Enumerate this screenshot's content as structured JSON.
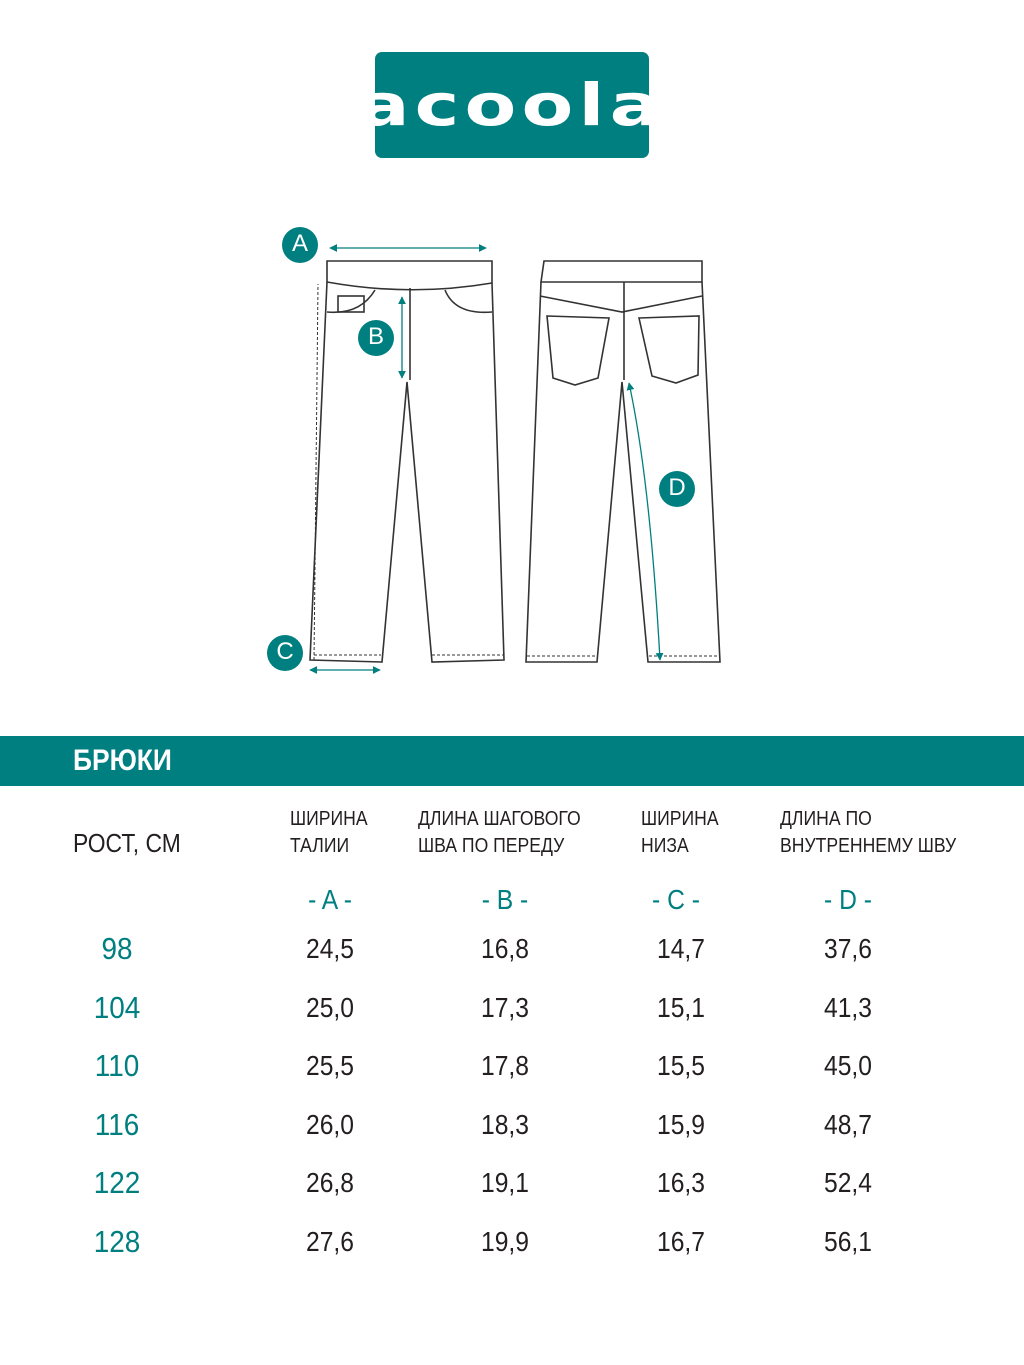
{
  "logo": {
    "text": "acoola",
    "color": "#007f80"
  },
  "diagram_labels": [
    "A",
    "B",
    "C",
    "D"
  ],
  "section_title": "БРЮКИ",
  "table": {
    "row_header": "РОСТ, СМ",
    "columns": [
      {
        "label_line1": "ШИРИНА",
        "label_line2": "ТАЛИИ",
        "letter": "- A -"
      },
      {
        "label_line1": "ДЛИНА ШАГОВОГО",
        "label_line2": "ШВА ПО ПЕРЕДУ",
        "letter": "- B -"
      },
      {
        "label_line1": "ШИРИНА",
        "label_line2": "НИЗА",
        "letter": "- C -"
      },
      {
        "label_line1": "ДЛИНА ПО",
        "label_line2": "ВНУТРЕННЕМУ ШВУ",
        "letter": "- D -"
      }
    ],
    "rows": [
      {
        "height": "98",
        "values": [
          "24,5",
          "16,8",
          "14,7",
          "37,6"
        ]
      },
      {
        "height": "104",
        "values": [
          "25,0",
          "17,3",
          "15,1",
          "41,3"
        ]
      },
      {
        "height": "110",
        "values": [
          "25,5",
          "17,8",
          "15,5",
          "45,0"
        ]
      },
      {
        "height": "116",
        "values": [
          "26,0",
          "18,3",
          "15,9",
          "48,7"
        ]
      },
      {
        "height": "122",
        "values": [
          "26,8",
          "19,1",
          "16,3",
          "52,4"
        ]
      },
      {
        "height": "128",
        "values": [
          "27,6",
          "19,9",
          "16,7",
          "56,1"
        ]
      }
    ]
  },
  "accent_color": "#007f80"
}
